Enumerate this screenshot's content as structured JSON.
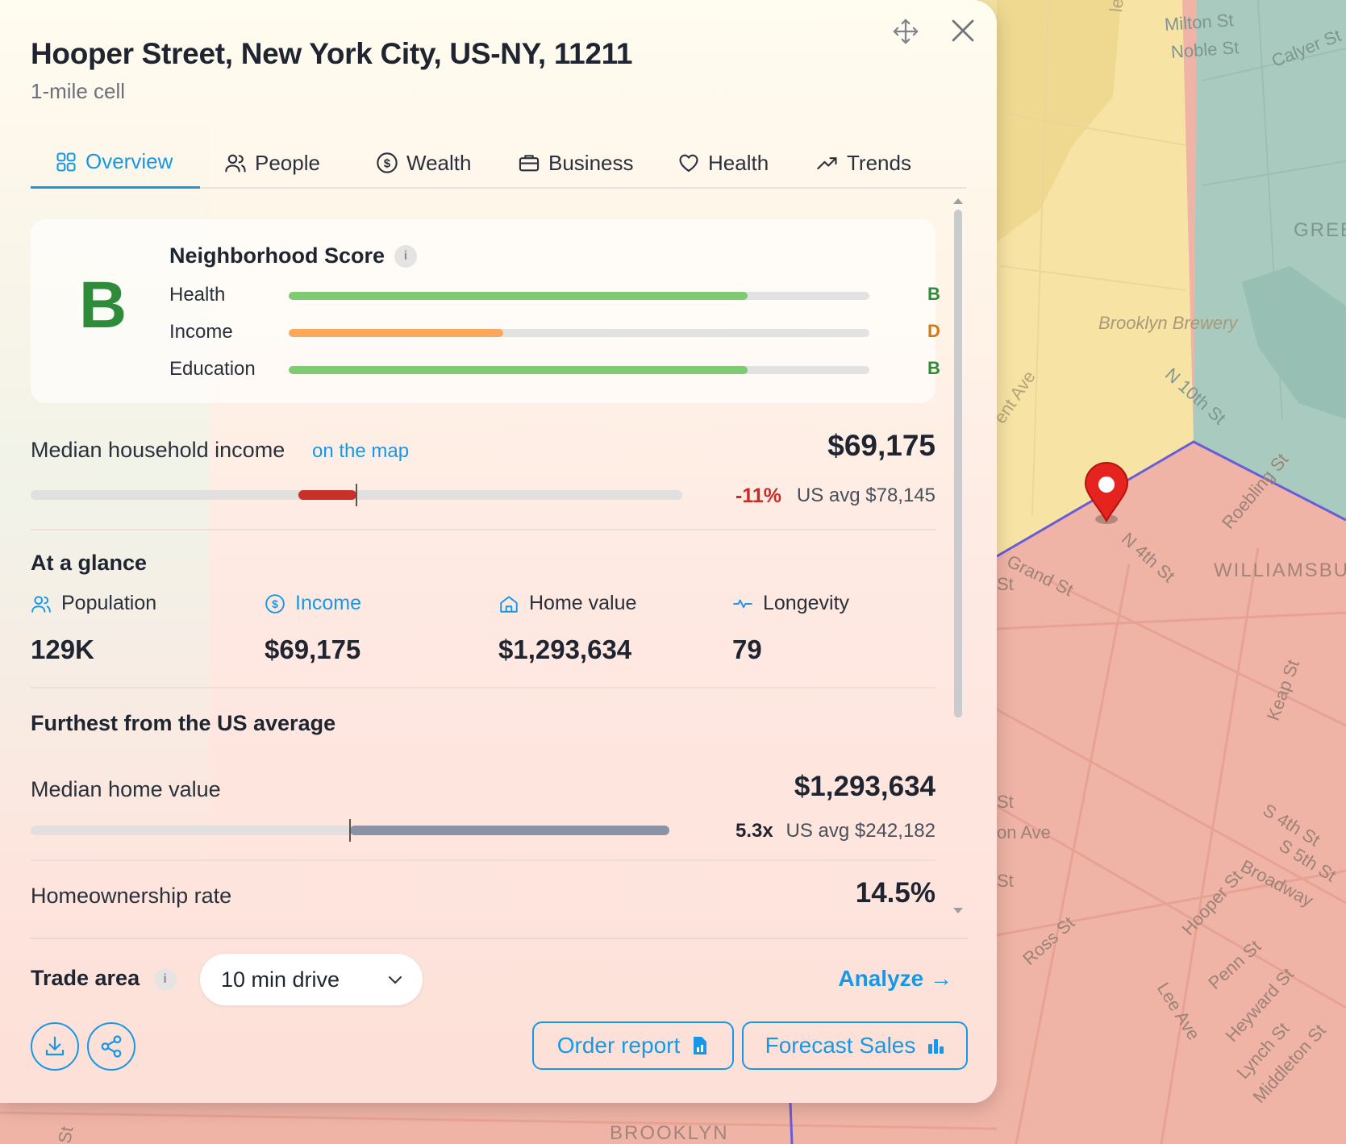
{
  "location": {
    "title": "Hooper Street, New York City, US-NY, 11211",
    "subtitle": "1-mile cell"
  },
  "tabs": [
    {
      "label": "Overview",
      "icon": "grid-icon",
      "active": true
    },
    {
      "label": "People",
      "icon": "people-icon"
    },
    {
      "label": "Wealth",
      "icon": "dollar-circle-icon"
    },
    {
      "label": "Business",
      "icon": "briefcase-icon"
    },
    {
      "label": "Health",
      "icon": "heart-icon"
    },
    {
      "label": "Trends",
      "icon": "trending-up-icon"
    }
  ],
  "neighborhood_score": {
    "grade": "B",
    "title": "Neighborhood Score",
    "info": "i",
    "rows": [
      {
        "label": "Health",
        "grade": "B",
        "fill": 0.79,
        "color": "#7ecb72",
        "grade_color": "#2e8b3a"
      },
      {
        "label": "Income",
        "grade": "D",
        "fill": 0.37,
        "color": "#fca85c",
        "grade_color": "#d07a12"
      },
      {
        "label": "Education",
        "grade": "B",
        "fill": 0.79,
        "color": "#7ecb72",
        "grade_color": "#2e8b3a"
      }
    ]
  },
  "median_income": {
    "label": "Median household income",
    "link": "on the map",
    "value": "$69,175",
    "diff": "-11%",
    "diff_color": "#cc2b25",
    "us_avg": "US avg $78,145"
  },
  "at_a_glance": {
    "title": "At a glance",
    "items": [
      {
        "label": "Population",
        "value": "129K",
        "icon": "people-icon",
        "color": "#2a303a"
      },
      {
        "label": "Income",
        "value": "$69,175",
        "icon": "dollar-circle-icon",
        "color": "#1798e6"
      },
      {
        "label": "Home value",
        "value": "$1,293,634",
        "icon": "home-icon",
        "color": "#2a303a"
      },
      {
        "label": "Longevity",
        "value": "79",
        "icon": "pulse-icon",
        "color": "#2a303a"
      }
    ]
  },
  "furthest": {
    "title": "Furthest from the US average",
    "home_value": {
      "label": "Median home value",
      "value": "$1,293,634",
      "multiplier": "5.3x",
      "us_avg": "US avg $242,182"
    },
    "homeownership": {
      "label": "Homeownership rate",
      "value": "14.5%"
    }
  },
  "trade_area": {
    "label": "Trade area",
    "info": "i",
    "selected": "10 min drive",
    "analyze": "Analyze →"
  },
  "actions": {
    "order_report": "Order report",
    "forecast_sales": "Forecast Sales"
  },
  "map": {
    "labels": [
      {
        "text": "Milton St",
        "cls": "tea"
      },
      {
        "text": "Noble St",
        "cls": "tea"
      },
      {
        "text": "Calyer St",
        "cls": "tea"
      },
      {
        "text": "GREE",
        "cls": "big tea"
      },
      {
        "text": "Brooklyn Brewery",
        "cls": "park"
      },
      {
        "text": "N 10th St",
        "cls": "tea"
      },
      {
        "text": "Roebling St",
        "cls": ""
      },
      {
        "text": "N 4th St",
        "cls": ""
      },
      {
        "text": "Grand St",
        "cls": ""
      },
      {
        "text": "WILLIAMSBUR",
        "cls": "big"
      },
      {
        "text": "Keap St",
        "cls": ""
      },
      {
        "text": "S 4th St",
        "cls": ""
      },
      {
        "text": "S 5th St",
        "cls": ""
      },
      {
        "text": "Broadway",
        "cls": ""
      },
      {
        "text": "Hooper St",
        "cls": ""
      },
      {
        "text": "Penn St",
        "cls": ""
      },
      {
        "text": "Ross St",
        "cls": ""
      },
      {
        "text": "Lee Ave",
        "cls": ""
      },
      {
        "text": "Heyward St",
        "cls": ""
      },
      {
        "text": "Lynch St",
        "cls": ""
      },
      {
        "text": "Middleton St",
        "cls": ""
      },
      {
        "text": "BROOKLYN",
        "cls": "big"
      },
      {
        "text": "ent Ave",
        "cls": "yel"
      },
      {
        "text": "lest St",
        "cls": "yel"
      },
      {
        "text": "St",
        "cls": ""
      },
      {
        "text": "on Ave",
        "cls": ""
      },
      {
        "text": "St",
        "cls": ""
      },
      {
        "text": "St",
        "cls": ""
      },
      {
        "text": "St",
        "cls": ""
      }
    ]
  }
}
